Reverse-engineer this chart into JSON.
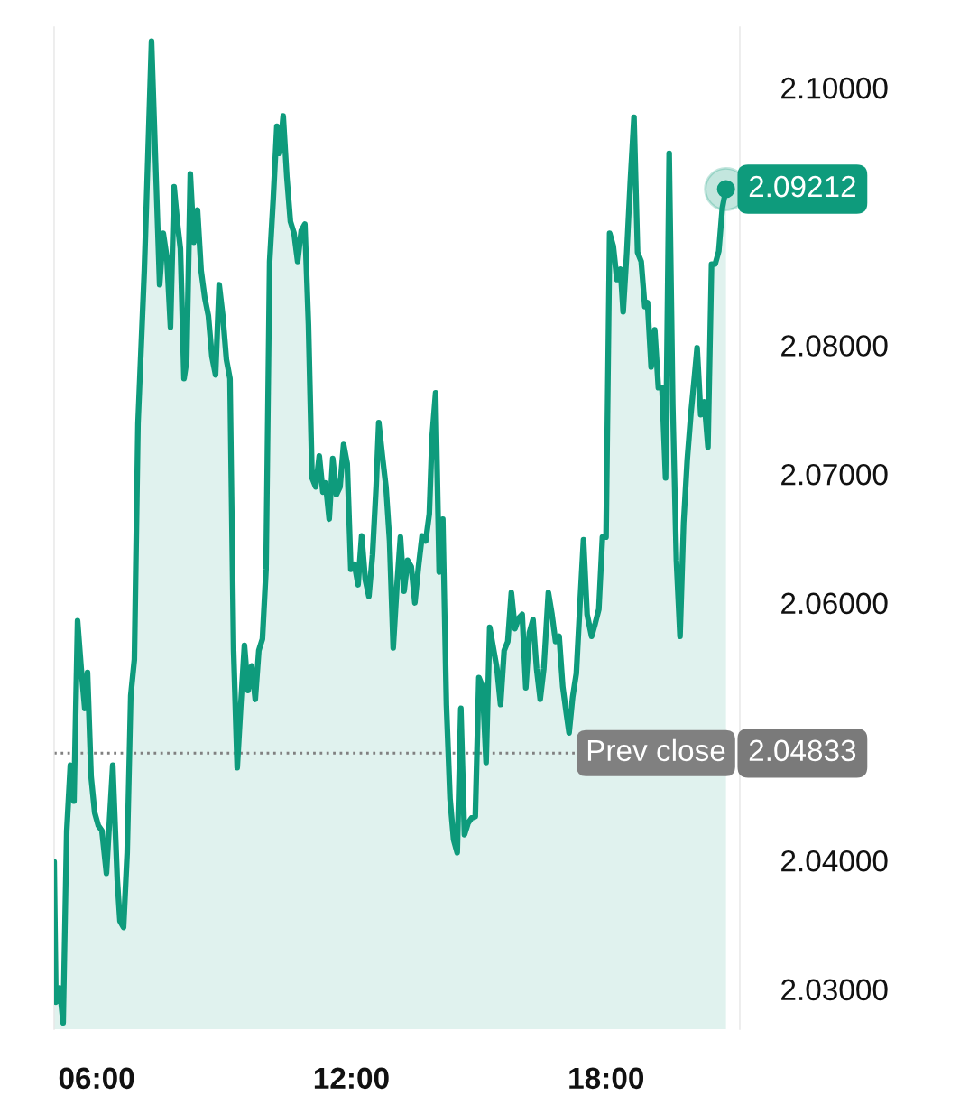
{
  "chart_data": {
    "type": "area",
    "series": [
      {
        "color": "#0e9b7c",
        "x": [
          5.0,
          5.042,
          5.127,
          5.212,
          5.297,
          5.382,
          5.467,
          5.552,
          5.637,
          5.722,
          5.786,
          5.871,
          5.956,
          6.041,
          6.126,
          6.232,
          6.381,
          6.487,
          6.551,
          6.635,
          6.72,
          6.805,
          6.89,
          6.975,
          7.124,
          7.294,
          7.485,
          7.57,
          7.655,
          7.74,
          7.825,
          7.91,
          7.974,
          8.059,
          8.122,
          8.207,
          8.292,
          8.377,
          8.462,
          8.547,
          8.632,
          8.717,
          8.802,
          8.887,
          8.972,
          9.057,
          9.142,
          9.227,
          9.312,
          9.397,
          9.482,
          9.567,
          9.652,
          9.737,
          9.821,
          9.906,
          9.991,
          10.076,
          10.161,
          10.246,
          10.31,
          10.395,
          10.48,
          10.565,
          10.65,
          10.735,
          10.82,
          10.905,
          10.99,
          11.075,
          11.16,
          11.245,
          11.33,
          11.393,
          11.478,
          11.563,
          11.648,
          11.733,
          11.818,
          11.903,
          11.988,
          12.073,
          12.158,
          12.243,
          12.328,
          12.413,
          12.498,
          12.583,
          12.646,
          12.731,
          12.816,
          12.901,
          12.986,
          13.071,
          13.156,
          13.241,
          13.326,
          13.411,
          13.496,
          13.581,
          13.666,
          13.751,
          13.836,
          13.9,
          13.985,
          14.069,
          14.154,
          14.239,
          14.324,
          14.409,
          14.494,
          14.579,
          14.664,
          14.749,
          14.834,
          14.919,
          15.004,
          15.089,
          15.174,
          15.259,
          15.344,
          15.429,
          15.514,
          15.599,
          15.684,
          15.769,
          15.854,
          15.939,
          16.024,
          16.109,
          16.194,
          16.279,
          16.363,
          16.448,
          16.533,
          16.64,
          16.725,
          16.81,
          16.894,
          16.979,
          17.064,
          17.128,
          17.213,
          17.298,
          17.383,
          17.468,
          17.553,
          17.659,
          17.744,
          17.829,
          17.914,
          17.999,
          18.084,
          18.169,
          18.254,
          18.339,
          18.402,
          18.487,
          18.572,
          18.657,
          18.742,
          18.827,
          18.912,
          18.976,
          19.061,
          19.146,
          19.231,
          19.316,
          19.401,
          19.486,
          19.571,
          19.656,
          19.741,
          19.826,
          19.911,
          19.995,
          20.08,
          20.144,
          20.229,
          20.314,
          20.399,
          20.484,
          20.569,
          20.654,
          20.739,
          20.824
        ],
        "values": [
          2.0399,
          2.029,
          2.0301,
          2.0274,
          2.0423,
          2.0474,
          2.0446,
          2.0586,
          2.0549,
          2.0518,
          2.0546,
          2.0465,
          2.0437,
          2.0427,
          2.0423,
          2.039,
          2.0474,
          2.0385,
          2.0353,
          2.0348,
          2.0406,
          2.0528,
          2.0556,
          2.0739,
          2.0858,
          2.1036,
          2.0847,
          2.0887,
          2.0868,
          2.0814,
          2.0923,
          2.0893,
          2.0875,
          2.0774,
          2.0788,
          2.0933,
          2.088,
          2.0905,
          2.0858,
          2.0837,
          2.0823,
          2.0791,
          2.0777,
          2.0847,
          2.0823,
          2.0789,
          2.0774,
          2.0563,
          2.0472,
          2.0521,
          2.0567,
          2.0532,
          2.0551,
          2.0525,
          2.0563,
          2.0572,
          2.0626,
          2.0865,
          2.0914,
          2.097,
          2.0949,
          2.0978,
          2.0931,
          2.0896,
          2.0887,
          2.0865,
          2.0889,
          2.0894,
          2.0816,
          2.0697,
          2.069,
          2.0714,
          2.0686,
          2.0693,
          2.0665,
          2.0712,
          2.0684,
          2.069,
          2.0723,
          2.0708,
          2.0626,
          2.063,
          2.0614,
          2.0652,
          2.0618,
          2.0605,
          2.0637,
          2.069,
          2.074,
          2.0714,
          2.069,
          2.0648,
          2.0565,
          2.0612,
          2.0651,
          2.0609,
          2.0633,
          2.0628,
          2.06,
          2.0628,
          2.0652,
          2.0648,
          2.0669,
          2.0728,
          2.0763,
          2.0624,
          2.0665,
          2.0521,
          2.0448,
          2.0416,
          2.0406,
          2.0518,
          2.042,
          2.0429,
          2.0433,
          2.0434,
          2.0542,
          2.0535,
          2.0476,
          2.0581,
          2.0565,
          2.0549,
          2.0521,
          2.0563,
          2.057,
          2.0608,
          2.058,
          2.0588,
          2.0591,
          2.0534,
          2.0577,
          2.0587,
          2.0549,
          2.0525,
          2.0549,
          2.0608,
          2.0591,
          2.057,
          2.0574,
          2.0535,
          2.0514,
          2.0499,
          2.0527,
          2.0545,
          2.0598,
          2.0649,
          2.0591,
          2.0574,
          2.0584,
          2.0595,
          2.0651,
          2.0651,
          2.0887,
          2.0877,
          2.0851,
          2.0859,
          2.0826,
          2.0872,
          2.0928,
          2.0977,
          2.0872,
          2.0865,
          2.083,
          2.0833,
          2.0783,
          2.0812,
          2.0767,
          2.0767,
          2.0697,
          2.0949,
          2.0753,
          2.0633,
          2.0574,
          2.0662,
          2.0711,
          2.0746,
          2.0775,
          2.0798,
          2.0746,
          2.0756,
          2.0721,
          2.0863,
          2.0863,
          2.0873,
          2.0907,
          2.09212
        ]
      }
    ],
    "xlim": [
      5.0,
      21.15
    ],
    "ylim": [
      2.0269,
      2.1047
    ],
    "xticks": [
      {
        "value": 6,
        "label": "06:00"
      },
      {
        "value": 12,
        "label": "12:00"
      },
      {
        "value": 18,
        "label": "18:00"
      }
    ],
    "yticks": [
      {
        "value": 2.03,
        "label": "2.03000"
      },
      {
        "value": 2.04,
        "label": "2.04000"
      },
      {
        "value": 2.06,
        "label": "2.06000"
      },
      {
        "value": 2.07,
        "label": "2.07000"
      },
      {
        "value": 2.08,
        "label": "2.08000"
      },
      {
        "value": 2.1,
        "label": "2.10000"
      }
    ],
    "ref_lines": [
      {
        "axis": "y",
        "value": 2.04833,
        "label": "Prev close",
        "color": "#808080",
        "line_style": "dotted"
      }
    ],
    "annotations": [
      {
        "text": "2.09212",
        "x": 20.824,
        "y": 2.09212
      },
      {
        "text": "2.04833",
        "x": 21.15,
        "y": 2.04833
      }
    ],
    "grid": false,
    "legend": false
  }
}
